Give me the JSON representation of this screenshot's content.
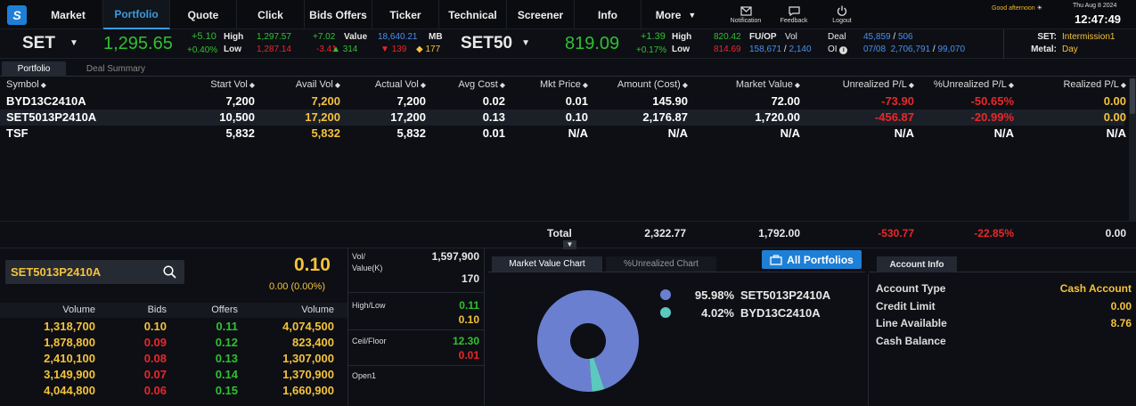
{
  "nav": {
    "logo": "S",
    "items": [
      "Market",
      "Portfolio",
      "Quote",
      "Click",
      "Bids Offers",
      "Ticker",
      "Technical",
      "Screener",
      "Info",
      "More"
    ],
    "icons": [
      "Notification",
      "Feedback",
      "Logout"
    ]
  },
  "header": {
    "greeting": "Good afternoon",
    "date": "Thu Aug 8 2024",
    "time": "12:47:49"
  },
  "ticker": {
    "set": {
      "name": "SET",
      "last": "1,295.65",
      "chg": "+5.10",
      "pct": "+0.40%",
      "high_lbl": "High",
      "low_lbl": "Low",
      "high": "1,297.57",
      "low": "1,287.14",
      "hchg": "+7.02",
      "lchg": "-3.41",
      "value_lbl": "Value",
      "value": "18,640.21",
      "mb": "MB",
      "up": "314",
      "down": "139",
      "unch": "177"
    },
    "set50": {
      "name": "SET50",
      "last": "819.09",
      "chg": "+1.39",
      "pct": "+0.17%",
      "high_lbl": "High",
      "low_lbl": "Low",
      "high": "820.42",
      "low": "814.69"
    },
    "fuop": {
      "label": "FU/OP",
      "vol_lbl": "Vol",
      "deal_lbl": "Deal",
      "vol1": "158,671",
      "vol2": "2,140",
      "oi_lbl": "OI",
      "deal1": "45,859",
      "deal2": "506",
      "oi1": "07/08",
      "oi2": "2,706,791",
      "oi3": "99,070"
    },
    "session": {
      "set_lbl": "SET:",
      "set_val": "Intermission1",
      "metal_lbl": "Metal:",
      "metal_val": "Day"
    }
  },
  "subtabs": [
    "Portfolio",
    "Deal Summary"
  ],
  "portfolio": {
    "headers": [
      "Symbol",
      "Start Vol",
      "Avail Vol",
      "Actual Vol",
      "Avg Cost",
      "Mkt Price",
      "Amount (Cost)",
      "Market Value",
      "Unrealized P/L",
      "%Unrealized P/L",
      "Realized P/L"
    ],
    "rows": [
      [
        "BYD13C2410A",
        "7,200",
        "7,200",
        "7,200",
        "0.02",
        "0.01",
        "145.90",
        "72.00",
        "-73.90",
        "-50.65%",
        "0.00"
      ],
      [
        "SET5013P2410A",
        "10,500",
        "17,200",
        "17,200",
        "0.13",
        "0.10",
        "2,176.87",
        "1,720.00",
        "-456.87",
        "-20.99%",
        "0.00"
      ],
      [
        "TSF",
        "5,832",
        "5,832",
        "5,832",
        "0.01",
        "N/A",
        "N/A",
        "N/A",
        "N/A",
        "N/A",
        "N/A"
      ]
    ],
    "total": {
      "label": "Total",
      "amount": "2,322.77",
      "market": "1,792.00",
      "upl": "-530.77",
      "pupl": "-22.85%",
      "rpl": "0.00"
    }
  },
  "quote": {
    "symbol": "SET5013P2410A",
    "last": "0.10",
    "change": "0.00 (0.00%)",
    "vol_lbl": "Vol/",
    "value_lbl": "Value(K)",
    "vol": "1,597,900",
    "value": "170",
    "hl_lbl": "High/Low",
    "high": "0.11",
    "low": "0.10",
    "cf_lbl": "Ceil/Floor",
    "ceil": "12.30",
    "floor": "0.01",
    "open_lbl": "Open1"
  },
  "orderbook": {
    "headers": [
      "Volume",
      "Bids",
      "Offers",
      "Volume"
    ],
    "rows": [
      [
        "1,318,700",
        "0.10",
        "0.11",
        "4,074,500"
      ],
      [
        "1,878,800",
        "0.09",
        "0.12",
        "823,400"
      ],
      [
        "2,410,100",
        "0.08",
        "0.13",
        "1,307,000"
      ],
      [
        "3,149,900",
        "0.07",
        "0.14",
        "1,370,900"
      ],
      [
        "4,044,800",
        "0.06",
        "0.15",
        "1,660,900"
      ]
    ]
  },
  "charttabs": [
    "Market Value Chart",
    "%Unrealized Chart"
  ],
  "all_portfolios": "All Portfolios",
  "chart_data": {
    "type": "pie",
    "categories": [
      "SET5013P2410A",
      "BYD13C2410A"
    ],
    "values": [
      95.98,
      4.02
    ],
    "labels": [
      "95.98%",
      "4.02%"
    ],
    "colors": [
      "#6b7fd1",
      "#5cc8c0"
    ]
  },
  "account": {
    "tab": "Account Info",
    "rows": [
      [
        "Account Type",
        "Cash Account"
      ],
      [
        "Credit Limit",
        "0.00"
      ],
      [
        "Line Available",
        "8.76"
      ],
      [
        "Cash Balance",
        ""
      ]
    ]
  }
}
